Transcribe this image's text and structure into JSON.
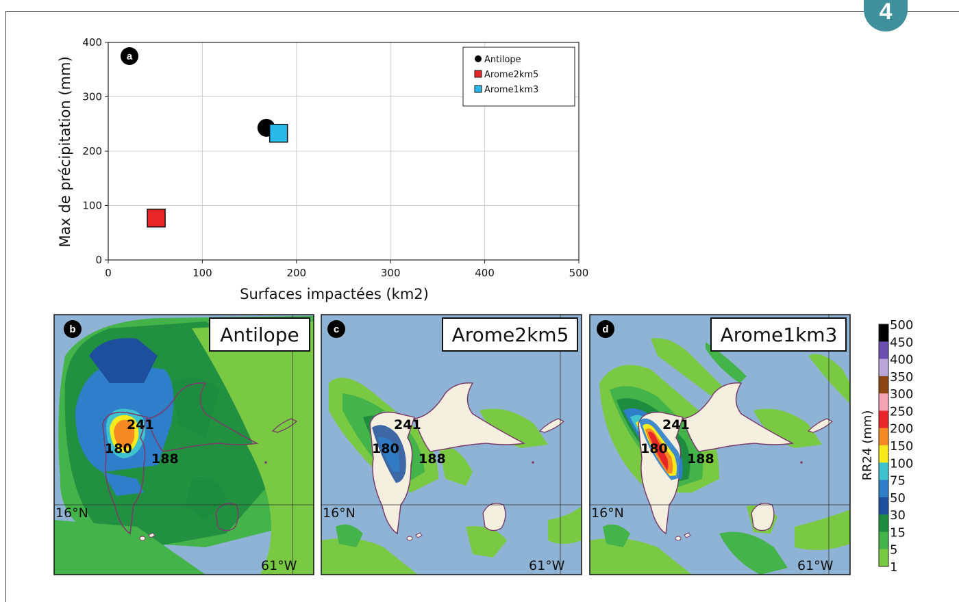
{
  "page_badge": "4",
  "chart_data": [
    {
      "type": "scatter",
      "panel_label": "a",
      "xlabel": "Surfaces impactées (km2)",
      "ylabel": "Max de précipitation (mm)",
      "xlim": [
        0,
        500
      ],
      "ylim": [
        0,
        400
      ],
      "xticks": [
        "0",
        "100",
        "200",
        "300",
        "400",
        "500"
      ],
      "yticks": [
        "0",
        "100",
        "200",
        "300",
        "400"
      ],
      "grid": true,
      "legend_position": "top-right",
      "series": [
        {
          "name": "Antilope",
          "marker": "circle",
          "color": "#000000",
          "x": 168,
          "y": 243
        },
        {
          "name": "Arome2km5",
          "marker": "square",
          "color": "#e8262a",
          "x": 51,
          "y": 77
        },
        {
          "name": "Arome1km3",
          "marker": "square",
          "color": "#2ab8e8",
          "x": 181,
          "y": 233
        }
      ]
    },
    {
      "type": "heatmap",
      "panels": [
        {
          "label": "b",
          "title": "Antilope"
        },
        {
          "label": "c",
          "title": "Arome2km5"
        },
        {
          "label": "d",
          "title": "Arome1km3"
        }
      ],
      "station_labels": [
        "241",
        "180",
        "188"
      ],
      "lat_label": "16°N",
      "lon_label": "61°W",
      "colorbar": {
        "label": "RR24 (mm)",
        "ticks": [
          "500",
          "450",
          "400",
          "350",
          "300",
          "250",
          "200",
          "150",
          "100",
          "75",
          "50",
          "30",
          "15",
          "5",
          "1"
        ],
        "colors": [
          "#000000",
          "#6a4fb0",
          "#b7a6d6",
          "#8b4513",
          "#f3a3b4",
          "#e8262a",
          "#f58a25",
          "#f6ea1c",
          "#3fc3cf",
          "#2e7ec9",
          "#1d4f9c",
          "#1e8c3f",
          "#43b34a",
          "#7ac943"
        ]
      }
    }
  ]
}
